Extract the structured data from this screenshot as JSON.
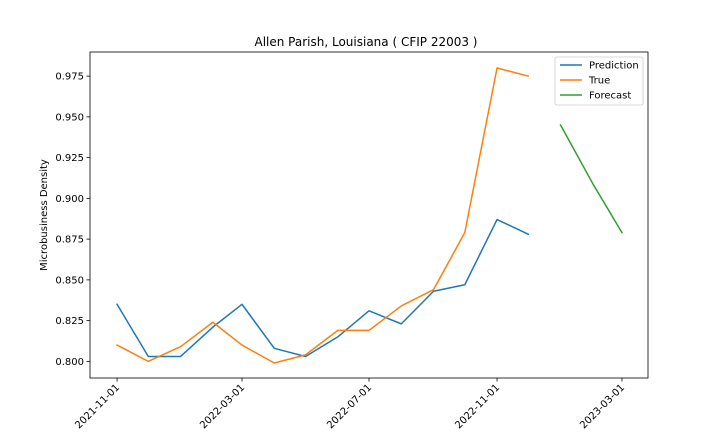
{
  "chart_data": {
    "type": "line",
    "title": "Allen Parish, Louisiana ( CFIP 22003 )",
    "xlabel": "",
    "ylabel": "Microbusiness Density",
    "xlim": [
      "2021-10-06",
      "2023-03-26"
    ],
    "ylim": [
      0.7898,
      0.9898
    ],
    "x_ticks": [
      "2021-11-01",
      "2022-03-01",
      "2022-07-01",
      "2022-11-01",
      "2023-03-01"
    ],
    "y_ticks": [
      "0.800",
      "0.825",
      "0.850",
      "0.875",
      "0.900",
      "0.925",
      "0.950",
      "0.975"
    ],
    "legend_position": "top-right",
    "grid": false,
    "series": [
      {
        "name": "Prediction",
        "color": "#1f77b4",
        "x": [
          "2021-11-01",
          "2021-12-01",
          "2022-01-01",
          "2022-02-01",
          "2022-03-01",
          "2022-04-01",
          "2022-05-01",
          "2022-06-01",
          "2022-07-01",
          "2022-08-01",
          "2022-09-01",
          "2022-10-01",
          "2022-11-01",
          "2022-12-01"
        ],
        "y": [
          0.835,
          0.803,
          0.803,
          0.821,
          0.835,
          0.808,
          0.803,
          0.815,
          0.831,
          0.823,
          0.843,
          0.847,
          0.887,
          0.878
        ]
      },
      {
        "name": "True",
        "color": "#ff7f0e",
        "x": [
          "2021-11-01",
          "2021-12-01",
          "2022-01-01",
          "2022-02-01",
          "2022-03-01",
          "2022-04-01",
          "2022-05-01",
          "2022-06-01",
          "2022-07-01",
          "2022-08-01",
          "2022-09-01",
          "2022-10-01",
          "2022-11-01",
          "2022-12-01"
        ],
        "y": [
          0.81,
          0.8,
          0.809,
          0.824,
          0.81,
          0.799,
          0.804,
          0.819,
          0.819,
          0.834,
          0.844,
          0.879,
          0.98,
          0.975
        ]
      },
      {
        "name": "Forecast",
        "color": "#2ca02c",
        "x": [
          "2023-01-01",
          "2023-02-01",
          "2023-03-01"
        ],
        "y": [
          0.945,
          0.909,
          0.879
        ]
      }
    ]
  }
}
